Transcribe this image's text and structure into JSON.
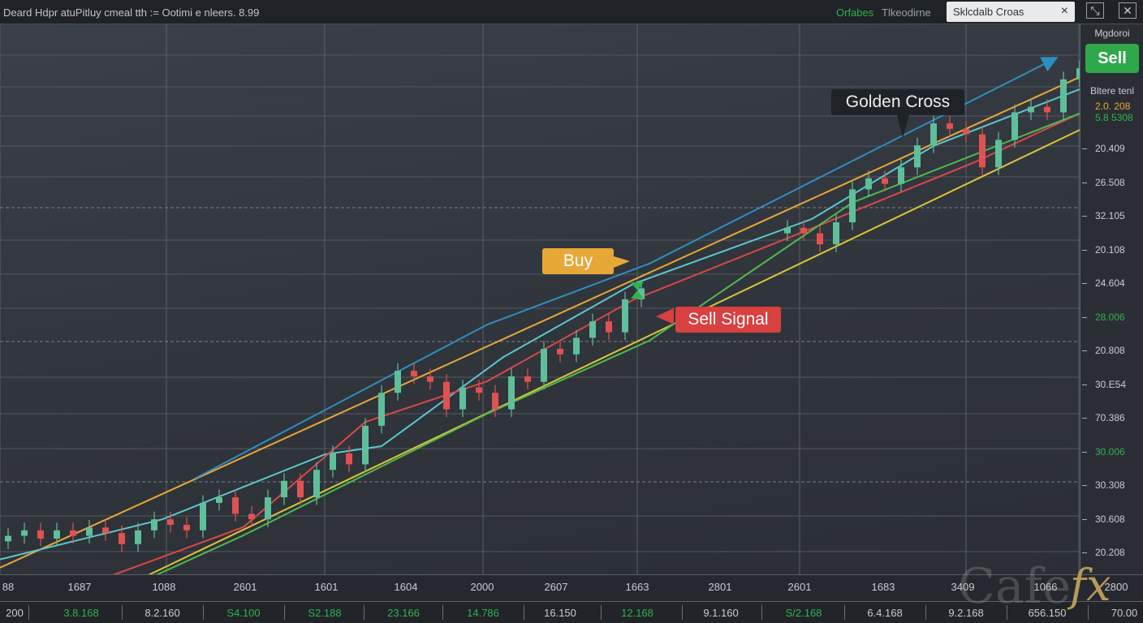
{
  "topbar": {
    "title": "Deard Hdpr atuPitluy cmeal tth := Ootimi e nleers. 8.99",
    "green_label": "Orfabes",
    "gray_label": "Tlkeodirne",
    "tab_label": "Sklcdalb Croas",
    "tab_close": "×",
    "icon1": "minimize-icon",
    "icon2": "close-icon"
  },
  "right_panel": {
    "label": "Mgdoroi",
    "sell_button": "Sell",
    "label2": "Bltere tenl",
    "value_orange": "2.0. 208",
    "value_green": "5.8 5308",
    "colors": {
      "sell": "#2ea84a",
      "orange": "#e8a838",
      "green": "#2fb24f"
    }
  },
  "annotations": {
    "golden_cross": "Golden Cross",
    "buy": "Buy",
    "sell_signal": "Sell Signal"
  },
  "logo": {
    "text": "Cafe",
    "fx": "fx"
  },
  "chart_data": {
    "type": "candlestick",
    "grid": true,
    "up_color": "#5fbf9a",
    "down_color": "#e05252",
    "y_tick_labels": [
      {
        "text": "20.409"
      },
      {
        "text": "26.508"
      },
      {
        "text": "32.105"
      },
      {
        "text": "20.108"
      },
      {
        "text": "24.604"
      },
      {
        "text": "28.006",
        "green": true
      },
      {
        "text": "20.808"
      },
      {
        "text": "30.E54"
      },
      {
        "text": "70.386"
      },
      {
        "text": "30.006",
        "green": true
      },
      {
        "text": "30.308"
      },
      {
        "text": "30.608"
      },
      {
        "text": "20.208"
      }
    ],
    "x_tick_labels": [
      "88",
      "1687",
      "1088",
      "2601",
      "1601",
      "1604",
      "2000",
      "2607",
      "1663",
      "2801",
      "2601",
      "1683",
      "3409",
      "1066",
      "2800"
    ],
    "bottom_values": [
      {
        "text": "200"
      },
      {
        "text": "3.8.168",
        "green": true
      },
      {
        "text": "8.2.160"
      },
      {
        "text": "S4.100",
        "green": true
      },
      {
        "text": "S2.188",
        "green": true
      },
      {
        "text": "23.166",
        "green": true
      },
      {
        "text": "14.786",
        "green": true
      },
      {
        "text": "16.150"
      },
      {
        "text": "12.168",
        "green": true
      },
      {
        "text": "9.1.160"
      },
      {
        "text": "S/2.168",
        "green": true
      },
      {
        "text": "6.4.168"
      },
      {
        "text": "9.2.168"
      },
      {
        "text": "656.150"
      },
      {
        "text": "70.00"
      }
    ],
    "closes": [
      7,
      8,
      6.5,
      8,
      7,
      8.5,
      7.5,
      5.5,
      8,
      10,
      9,
      8,
      13,
      14,
      11,
      10,
      14,
      17,
      14,
      19,
      22,
      20,
      27,
      33,
      37,
      36,
      35,
      30,
      34,
      33,
      30,
      36,
      35,
      41,
      40,
      43,
      46,
      44,
      50,
      52,
      null,
      null,
      null,
      null,
      null,
      null,
      null,
      null,
      63,
      62,
      60,
      64,
      70,
      72,
      71,
      74,
      78,
      82,
      81,
      80,
      74,
      79,
      84,
      85,
      84,
      90,
      92
    ],
    "lines": [
      {
        "color": "#d8c53a",
        "points": [
          [
            2.5,
            -8.8
          ],
          [
            66,
            80.8
          ]
        ]
      },
      {
        "color": "#e8a838",
        "points": [
          [
            -0.5,
            1.2
          ],
          [
            66,
            90.4
          ]
        ]
      },
      {
        "color": "#2e8fc0",
        "points": [
          [
            11.5,
            17.4
          ],
          [
            29.5,
            45.4
          ],
          [
            39.5,
            56.5
          ],
          [
            64.5,
            93.8
          ]
        ],
        "arrow": true
      },
      {
        "color": "#5cc8d0",
        "points": [
          [
            -0.5,
            2.7
          ],
          [
            9.5,
            10
          ],
          [
            19.5,
            21.8
          ],
          [
            23,
            23.3
          ],
          [
            30.5,
            39.5
          ],
          [
            38.5,
            52.8
          ],
          [
            49.5,
            64.6
          ],
          [
            57,
            77.9
          ],
          [
            66,
            88.2
          ]
        ]
      },
      {
        "color": "#d94848",
        "points": [
          [
            -0.5,
            -7.7
          ],
          [
            14.5,
            8.6
          ],
          [
            22,
            27.7
          ],
          [
            29.5,
            35.1
          ],
          [
            38.5,
            49.9
          ],
          [
            48.5,
            61.7
          ],
          [
            59.5,
            74.9
          ],
          [
            66,
            83.8
          ]
        ]
      },
      {
        "color": "#4fb84f",
        "points": [
          [
            3.5,
            -7.7
          ],
          [
            14.5,
            7.1
          ],
          [
            29.5,
            29.2
          ],
          [
            39.5,
            42.5
          ],
          [
            52,
            67.6
          ],
          [
            66,
            83.8
          ]
        ]
      }
    ]
  }
}
